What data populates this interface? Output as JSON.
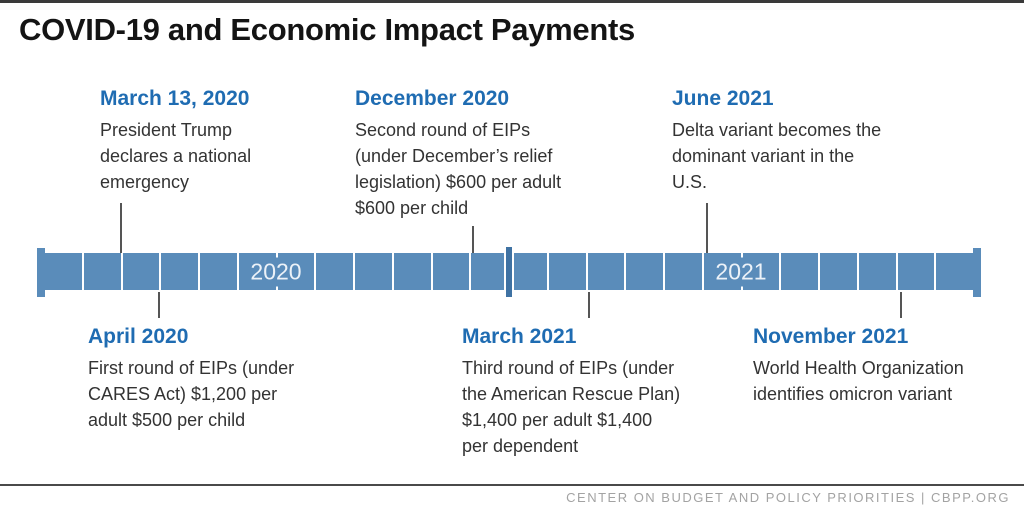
{
  "title": "COVID-19 and Economic Impact Payments",
  "timeline": {
    "years": [
      {
        "label": "2020"
      },
      {
        "label": "2021"
      }
    ],
    "events": [
      {
        "date": "March 13, 2020",
        "description": "President Trump\ndeclares a national\nemergency",
        "position": "above"
      },
      {
        "date": "December 2020",
        "description": "Second round of EIPs\n(under December’s relief\nlegislation) $600 per adult\n$600 per child",
        "position": "above"
      },
      {
        "date": "June 2021",
        "description": "Delta variant becomes the\ndominant variant in the\nU.S.",
        "position": "above"
      },
      {
        "date": "April 2020",
        "description": "First round of EIPs (under\nCARES Act) $1,200 per\nadult $500 per child",
        "position": "below"
      },
      {
        "date": "March 2021",
        "description": "Third round of EIPs (under\nthe American Rescue Plan)\n$1,400 per adult $1,400\nper dependent",
        "position": "below"
      },
      {
        "date": "November 2021",
        "description": "World Health Organization\nidentifies omicron variant",
        "position": "below"
      }
    ],
    "months_per_year": 12
  },
  "footer": {
    "credit": "CENTER ON BUDGET AND POLICY PRIORITIES | CBPP.ORG"
  },
  "colors": {
    "heading_blue": "#1f6cb2",
    "bar_blue": "#5a8cba",
    "year_boundary_blue": "#3f72a3",
    "body_text": "#333333",
    "connector_gray": "#555555",
    "credit_gray": "#a3a3a3"
  }
}
